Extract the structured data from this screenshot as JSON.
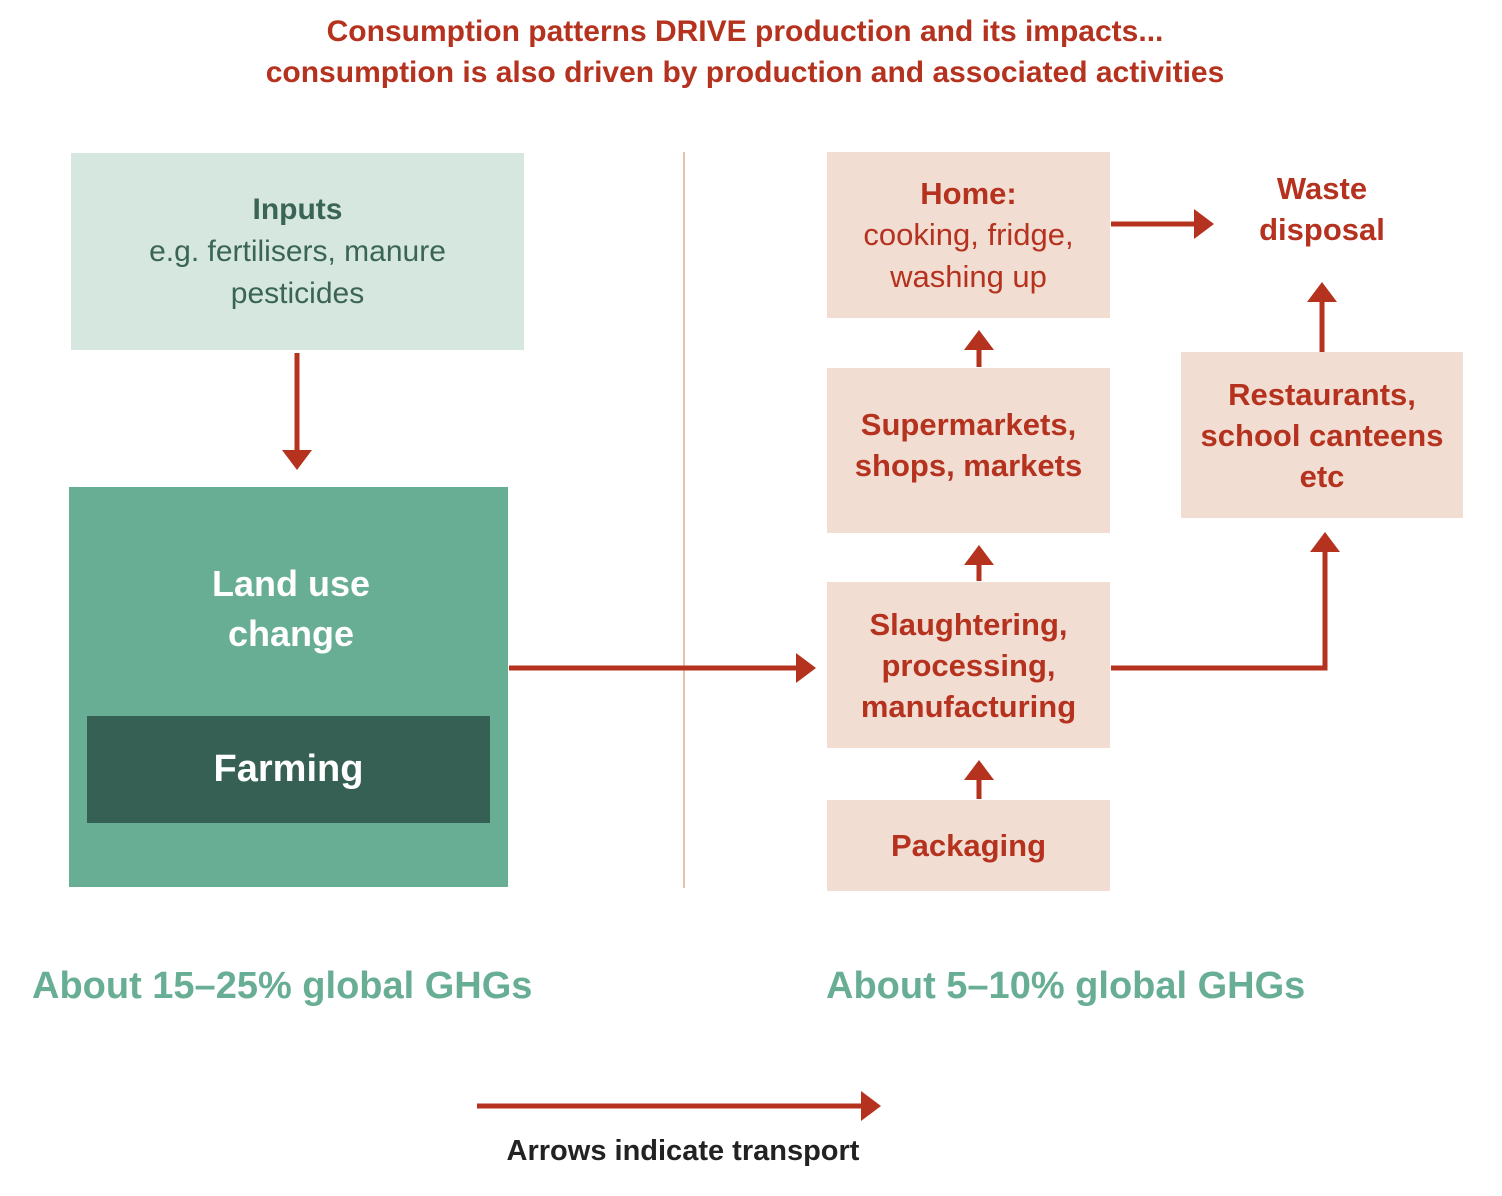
{
  "title": {
    "line1": "Consumption patterns DRIVE production and its impacts...",
    "line2": "consumption is also driven by production and associated activities"
  },
  "production": {
    "inputs": {
      "heading": "Inputs",
      "line1": "e.g. fertilisers, manure",
      "line2": "pesticides"
    },
    "land_use": {
      "line1": "Land use",
      "line2": "change"
    },
    "farming": "Farming",
    "ghg_label": "About 15–25% global GHGs"
  },
  "consumption": {
    "home": {
      "heading": "Home:",
      "line1": "cooking, fridge,",
      "line2": "washing up"
    },
    "waste": {
      "line1": "Waste",
      "line2": "disposal"
    },
    "supermarkets": {
      "line1": "Supermarkets,",
      "line2": "shops, markets"
    },
    "restaurants": {
      "line1": "Restaurants,",
      "line2": "school canteens",
      "line3": "etc"
    },
    "processing": {
      "line1": "Slaughtering,",
      "line2": "processing,",
      "line3": "manufacturing"
    },
    "packaging": "Packaging",
    "ghg_label": "About 5–10% global GHGs"
  },
  "legend": {
    "label": "Arrows indicate transport"
  },
  "colors": {
    "accent_red": "#b5321f",
    "consumption_box": "#f2ddd2",
    "inputs_box": "#d6e7df",
    "land_use_box": "#68ae94",
    "farming_box": "#366053"
  }
}
